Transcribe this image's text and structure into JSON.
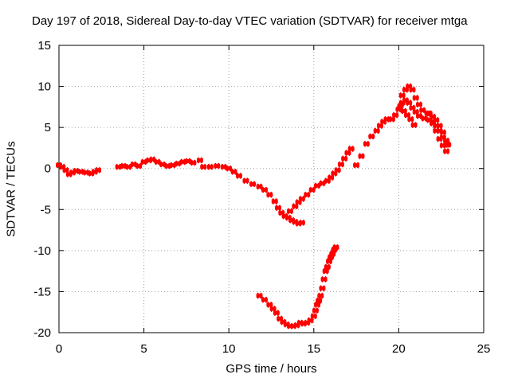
{
  "chart_data": {
    "type": "scatter",
    "title": "Day 197 of 2018, Sidereal Day-to-day VTEC variation (SDTVAR) for receiver mtga",
    "xlabel": "GPS time / hours",
    "ylabel": "SDTVAR / TECUs",
    "xlim": [
      0,
      25
    ],
    "ylim": [
      -20,
      15
    ],
    "x_ticks": [
      0,
      5,
      10,
      15,
      20,
      25
    ],
    "y_ticks": [
      -20,
      -15,
      -10,
      -5,
      0,
      5,
      10,
      15
    ],
    "x_tick_labels": [
      "0",
      "5",
      "10",
      "15",
      "20",
      "25"
    ],
    "y_tick_labels": [
      "-20",
      "-15",
      "-10",
      "-5",
      "0",
      "5",
      "10",
      "15"
    ],
    "grid": true,
    "marker_color": "#ff0000",
    "series": [
      {
        "points": [
          [
            0.0,
            0.4
          ],
          [
            0.2,
            0.2
          ],
          [
            0.4,
            -0.2
          ],
          [
            0.6,
            -0.7
          ],
          [
            0.8,
            -0.5
          ],
          [
            1.0,
            -0.3
          ],
          [
            1.3,
            -0.4
          ],
          [
            1.6,
            -0.5
          ],
          [
            1.9,
            -0.6
          ],
          [
            2.1,
            -0.4
          ],
          [
            2.3,
            -0.2
          ],
          [
            3.5,
            0.2
          ],
          [
            3.8,
            0.3
          ],
          [
            4.1,
            0.2
          ],
          [
            4.4,
            0.5
          ],
          [
            4.7,
            0.3
          ],
          [
            5.0,
            0.8
          ],
          [
            5.3,
            1.0
          ],
          [
            5.5,
            1.1
          ],
          [
            5.8,
            0.8
          ],
          [
            6.1,
            0.5
          ],
          [
            6.4,
            0.3
          ],
          [
            6.7,
            0.4
          ],
          [
            7.0,
            0.6
          ],
          [
            7.3,
            0.8
          ],
          [
            7.6,
            0.9
          ],
          [
            7.9,
            0.7
          ],
          [
            8.3,
            1.0
          ],
          [
            8.5,
            0.2
          ],
          [
            8.9,
            0.2
          ],
          [
            9.3,
            0.3
          ],
          [
            9.7,
            0.2
          ],
          [
            10.0,
            0.0
          ],
          [
            10.3,
            -0.4
          ],
          [
            10.6,
            -0.9
          ],
          [
            11.0,
            -1.5
          ],
          [
            11.4,
            -1.9
          ],
          [
            11.8,
            -2.2
          ],
          [
            12.1,
            -2.6
          ],
          [
            12.4,
            -3.2
          ],
          [
            12.7,
            -4.0
          ],
          [
            12.9,
            -4.8
          ],
          [
            13.1,
            -5.4
          ],
          [
            13.3,
            -5.8
          ],
          [
            13.5,
            -6.0
          ],
          [
            13.7,
            -6.3
          ],
          [
            13.9,
            -6.5
          ],
          [
            14.1,
            -6.7
          ],
          [
            14.3,
            -6.6
          ],
          [
            13.6,
            -5.2
          ],
          [
            13.9,
            -4.6
          ],
          [
            14.1,
            -4.1
          ],
          [
            14.3,
            -3.7
          ],
          [
            14.6,
            -3.2
          ],
          [
            14.9,
            -2.6
          ],
          [
            15.2,
            -2.1
          ],
          [
            15.5,
            -1.8
          ],
          [
            15.8,
            -1.5
          ],
          [
            16.0,
            -1.1
          ],
          [
            16.2,
            -0.6
          ],
          [
            16.4,
            -0.2
          ],
          [
            16.6,
            0.5
          ],
          [
            16.8,
            1.2
          ],
          [
            17.0,
            1.9
          ],
          [
            17.2,
            2.4
          ],
          [
            17.5,
            0.4
          ],
          [
            17.8,
            1.5
          ],
          [
            18.1,
            3.0
          ],
          [
            18.4,
            3.9
          ],
          [
            18.7,
            4.6
          ],
          [
            18.9,
            5.2
          ],
          [
            19.1,
            5.7
          ],
          [
            19.3,
            6.0
          ],
          [
            19.6,
            6.0
          ],
          [
            19.8,
            6.5
          ],
          [
            20.0,
            7.2
          ],
          [
            20.2,
            8.0
          ],
          [
            20.4,
            8.3
          ],
          [
            20.6,
            8.0
          ],
          [
            20.8,
            7.4
          ],
          [
            21.0,
            6.9
          ],
          [
            21.2,
            6.4
          ],
          [
            21.5,
            6.1
          ],
          [
            21.8,
            5.9
          ],
          [
            22.0,
            5.5
          ],
          [
            22.2,
            5.2
          ],
          [
            22.4,
            4.6
          ],
          [
            22.6,
            3.8
          ],
          [
            22.8,
            2.9
          ],
          [
            20.2,
            8.9
          ],
          [
            20.4,
            9.6
          ],
          [
            20.6,
            10.0
          ],
          [
            20.8,
            9.6
          ],
          [
            21.0,
            8.6
          ],
          [
            21.2,
            7.8
          ],
          [
            21.4,
            7.1
          ],
          [
            21.7,
            6.7
          ],
          [
            22.0,
            6.3
          ],
          [
            22.2,
            5.9
          ],
          [
            22.4,
            5.2
          ],
          [
            22.6,
            4.4
          ],
          [
            22.8,
            3.4
          ],
          [
            22.9,
            2.9
          ],
          [
            20.1,
            7.6
          ],
          [
            20.3,
            7.0
          ],
          [
            20.5,
            6.5
          ],
          [
            20.7,
            6.0
          ],
          [
            20.9,
            5.3
          ],
          [
            21.8,
            6.7
          ],
          [
            22.0,
            5.7
          ],
          [
            22.2,
            4.6
          ],
          [
            22.4,
            3.6
          ],
          [
            22.6,
            2.8
          ],
          [
            22.8,
            2.1
          ],
          [
            11.8,
            -15.5
          ],
          [
            12.1,
            -16.0
          ],
          [
            12.4,
            -16.6
          ],
          [
            12.6,
            -17.1
          ],
          [
            12.8,
            -17.6
          ],
          [
            13.0,
            -18.3
          ],
          [
            13.2,
            -18.7
          ],
          [
            13.4,
            -19.0
          ],
          [
            13.6,
            -19.2
          ],
          [
            13.8,
            -19.2
          ],
          [
            14.0,
            -19.1
          ],
          [
            14.2,
            -18.8
          ],
          [
            14.4,
            -18.9
          ],
          [
            14.6,
            -18.8
          ],
          [
            14.8,
            -18.5
          ],
          [
            15.0,
            -18.0
          ],
          [
            15.1,
            -17.3
          ],
          [
            15.2,
            -16.6
          ],
          [
            15.3,
            -16.1
          ],
          [
            15.4,
            -15.5
          ],
          [
            15.5,
            -14.6
          ],
          [
            15.6,
            -13.5
          ],
          [
            15.7,
            -12.5
          ],
          [
            15.8,
            -12.0
          ],
          [
            15.9,
            -11.3
          ],
          [
            16.0,
            -10.8
          ],
          [
            16.1,
            -10.4
          ],
          [
            16.2,
            -9.9
          ],
          [
            16.3,
            -9.6
          ]
        ]
      }
    ]
  }
}
